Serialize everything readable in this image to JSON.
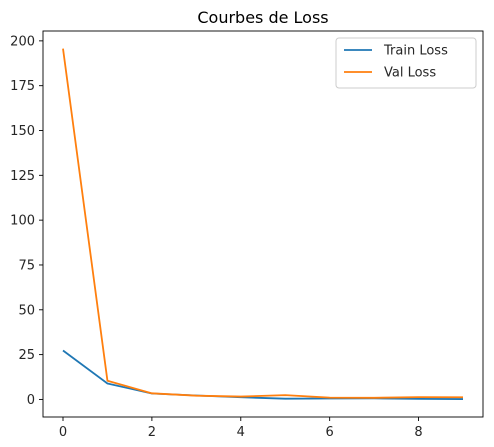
{
  "chart_data": {
    "type": "line",
    "title": "Courbes de Loss",
    "xlabel": "",
    "ylabel": "",
    "xlim": [
      -0.45,
      9.45
    ],
    "ylim": [
      -9.8,
      205.5
    ],
    "xticks": [
      0,
      2,
      4,
      6,
      8
    ],
    "yticks": [
      0,
      25,
      50,
      75,
      100,
      125,
      150,
      175,
      200
    ],
    "grid": false,
    "legend_position": "top-right",
    "x": [
      0,
      1,
      2,
      3,
      4,
      5,
      6,
      7,
      8,
      9
    ],
    "series": [
      {
        "name": "Train Loss",
        "color": "#1f77b4",
        "values": [
          27.3,
          8.9,
          3.3,
          2.2,
          1.2,
          0.4,
          0.5,
          0.6,
          0.3,
          0.2
        ]
      },
      {
        "name": "Val Loss",
        "color": "#ff7f0e",
        "values": [
          195.7,
          10.4,
          3.4,
          2.1,
          1.6,
          2.4,
          1.0,
          0.9,
          1.3,
          1.2
        ]
      }
    ]
  }
}
